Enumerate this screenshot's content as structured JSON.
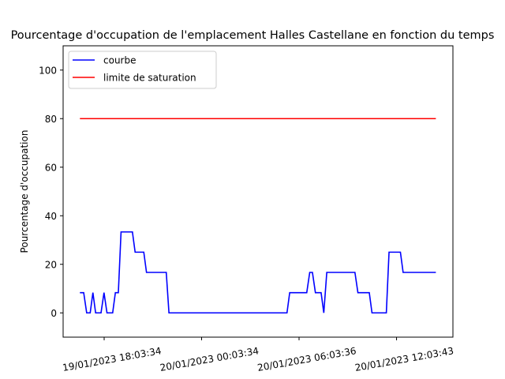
{
  "chart_data": {
    "type": "line",
    "title": "Pourcentage d'occupation de l'emplacement Halles Castellane en fonction du temps",
    "xlabel": "",
    "ylabel": "Pourcentage d'occupation",
    "ylim": [
      -10,
      110
    ],
    "yticks": [
      0,
      20,
      40,
      60,
      80,
      100
    ],
    "xticks": [
      {
        "label": "19/01/2023 18:03:34",
        "x": "2023-01-19T18:03:34"
      },
      {
        "label": "20/01/2023 00:03:34",
        "x": "2023-01-20T00:03:34"
      },
      {
        "label": "20/01/2023 06:03:36",
        "x": "2023-01-20T06:03:36"
      },
      {
        "label": "20/01/2023 12:03:43",
        "x": "2023-01-20T12:03:43"
      }
    ],
    "xlim": [
      "2023-01-19T15:32:00",
      "2023-01-20T15:32:00"
    ],
    "grid": false,
    "legend": "top-left",
    "series": [
      {
        "name": "courbe",
        "color": "#0000ff",
        "points": [
          [
            "2023-01-19T16:34:00",
            8.33
          ],
          [
            "2023-01-19T16:48:00",
            8.33
          ],
          [
            "2023-01-19T16:59:00",
            0
          ],
          [
            "2023-01-19T17:12:00",
            0
          ],
          [
            "2023-01-19T17:22:00",
            8.33
          ],
          [
            "2023-01-19T17:32:00",
            0
          ],
          [
            "2023-01-19T17:52:00",
            0
          ],
          [
            "2023-01-19T18:03:00",
            8.33
          ],
          [
            "2023-01-19T18:14:00",
            0
          ],
          [
            "2023-01-19T18:35:00",
            0
          ],
          [
            "2023-01-19T18:45:00",
            8.33
          ],
          [
            "2023-01-19T18:56:00",
            8.33
          ],
          [
            "2023-01-19T19:06:00",
            33.33
          ],
          [
            "2023-01-19T19:48:00",
            33.33
          ],
          [
            "2023-01-19T19:58:00",
            25
          ],
          [
            "2023-01-19T20:30:00",
            25
          ],
          [
            "2023-01-19T20:40:00",
            16.67
          ],
          [
            "2023-01-19T21:53:00",
            16.67
          ],
          [
            "2023-01-19T22:03:00",
            0
          ],
          [
            "2023-01-20T05:19:00",
            0
          ],
          [
            "2023-01-20T05:29:00",
            8.33
          ],
          [
            "2023-01-20T06:32:00",
            8.33
          ],
          [
            "2023-01-20T06:43:00",
            16.67
          ],
          [
            "2023-01-20T06:53:00",
            16.67
          ],
          [
            "2023-01-20T07:04:00",
            8.33
          ],
          [
            "2023-01-20T07:25:00",
            8.33
          ],
          [
            "2023-01-20T07:35:00",
            0
          ],
          [
            "2023-01-20T07:46:00",
            16.67
          ],
          [
            "2023-01-20T09:30:00",
            16.67
          ],
          [
            "2023-01-20T09:41:00",
            8.33
          ],
          [
            "2023-01-20T10:23:00",
            8.33
          ],
          [
            "2023-01-20T10:33:00",
            0
          ],
          [
            "2023-01-20T11:26:00",
            0
          ],
          [
            "2023-01-20T11:36:00",
            25
          ],
          [
            "2023-01-20T12:18:00",
            25
          ],
          [
            "2023-01-20T12:28:00",
            16.67
          ],
          [
            "2023-01-20T14:29:00",
            16.67
          ]
        ]
      },
      {
        "name": "limite de saturation",
        "color": "#ff0000",
        "points": [
          [
            "2023-01-19T16:34:00",
            80
          ],
          [
            "2023-01-20T14:29:00",
            80
          ]
        ]
      }
    ]
  }
}
